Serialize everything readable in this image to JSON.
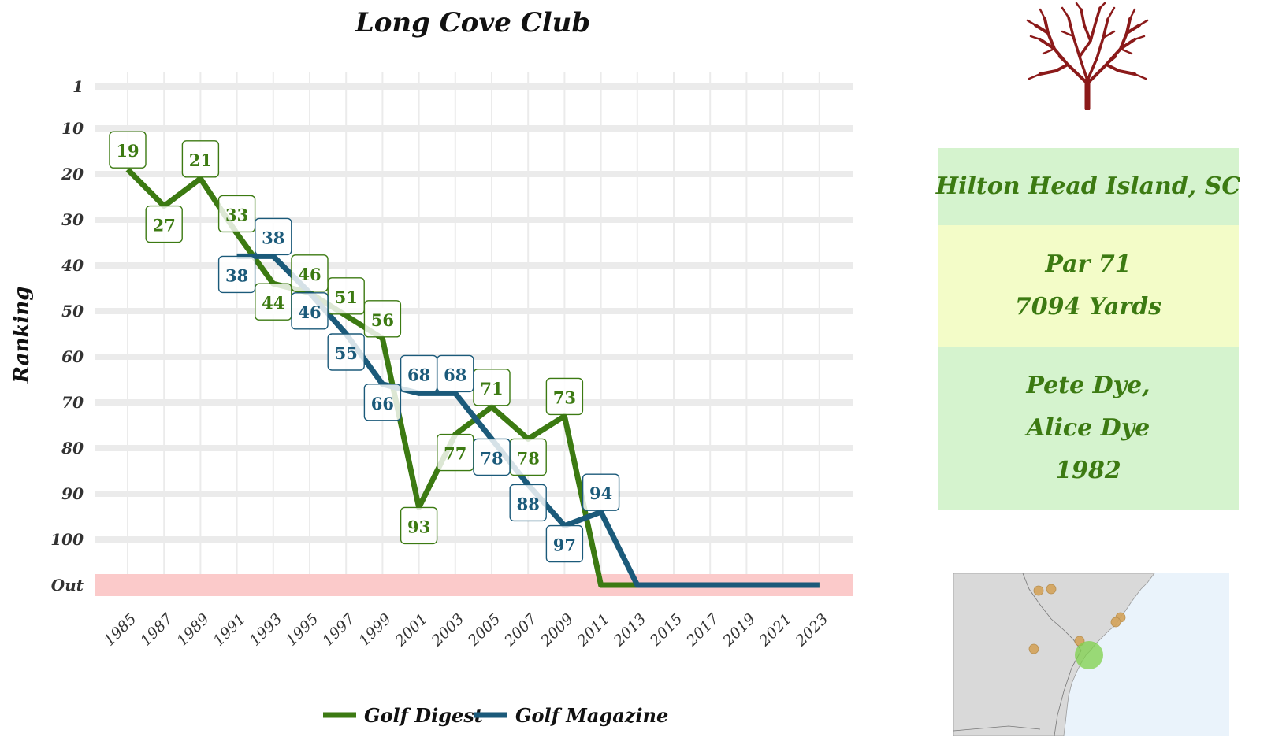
{
  "chart_data": {
    "type": "line",
    "title": "Long Cove Club",
    "ylabel": "Ranking",
    "xlabel": "",
    "x_ticks": [
      "1985",
      "1987",
      "1989",
      "1991",
      "1993",
      "1995",
      "1997",
      "1999",
      "2001",
      "2003",
      "2005",
      "2007",
      "2009",
      "2011",
      "2013",
      "2015",
      "2017",
      "2019",
      "2021",
      "2023"
    ],
    "y_ticks": [
      "1",
      "10",
      "20",
      "30",
      "40",
      "50",
      "60",
      "70",
      "80",
      "90",
      "100",
      "Out"
    ],
    "ylim": [
      1,
      110
    ],
    "y_reversed": true,
    "out_value": 110,
    "grid": true,
    "legend_position": "bottom",
    "series": [
      {
        "name": "Golf Digest",
        "color": "#3c7a12",
        "x": [
          1985,
          1987,
          1989,
          1991,
          1993,
          1995,
          1997,
          1999,
          2001,
          2003,
          2005,
          2007,
          2009,
          2011,
          2013,
          2015,
          2017,
          2019,
          2021,
          2023
        ],
        "y": [
          19,
          27,
          21,
          33,
          44,
          46,
          51,
          56,
          93,
          77,
          71,
          78,
          73,
          "Out",
          "Out",
          "Out",
          "Out",
          "Out",
          "Out",
          "Out"
        ]
      },
      {
        "name": "Golf Magazine",
        "color": "#1b5a7a",
        "x": [
          1991,
          1993,
          1995,
          1997,
          1999,
          2001,
          2003,
          2005,
          2007,
          2009,
          2011,
          2013,
          2015,
          2017,
          2019,
          2021,
          2023
        ],
        "y": [
          38,
          38,
          46,
          55,
          66,
          68,
          68,
          78,
          88,
          97,
          94,
          "Out",
          "Out",
          "Out",
          "Out",
          "Out",
          "Out"
        ]
      }
    ]
  },
  "info": {
    "location": "Hilton Head Island, SC",
    "par": "Par 71",
    "yards": "7094 Yards",
    "designer_1": "Pete Dye,",
    "designer_2": "Alice Dye",
    "year": "1982"
  },
  "colors": {
    "out_band": "#fbcaca",
    "location_bg": "#d5f3ce",
    "specs_bg": "#f3fcc8",
    "coral": "#8b1a1a",
    "map_land": "#d9d9d9",
    "map_water": "#eaf3fb",
    "nearby_course": "#d4a35a",
    "this_course": "#7ed04a"
  },
  "map": {
    "icon": "region-map",
    "highlight": "this-course-marker",
    "nearby_markers": 6
  },
  "logo": {
    "icon": "coral-icon"
  }
}
